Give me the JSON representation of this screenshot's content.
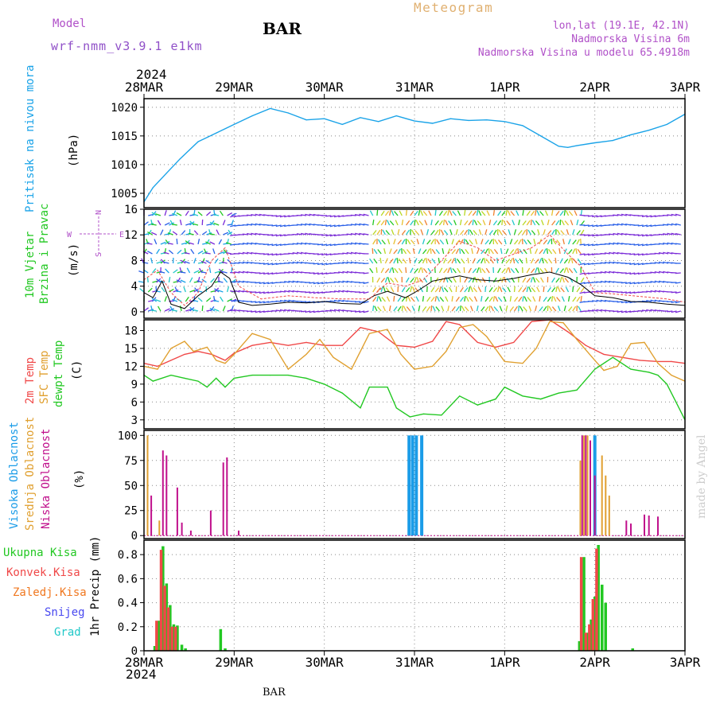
{
  "header": {
    "model_label": "Model",
    "model_name": "wrf-nmm_v3.9.1 e1km",
    "title": "BAR",
    "subtitle": "Meteogram",
    "coords": "lon,lat (19.1E, 42.1N)",
    "altitude": "Nadmorska Visina 6m",
    "model_altitude": "Nadmorska Visina u modelu 65.4918m",
    "footer": "BAR",
    "credit": "made by Angel",
    "year": "2024"
  },
  "colors": {
    "pressure": "#1aa3e8",
    "temp2m": "#f04848",
    "sfc": "#e0a030",
    "dewpt": "#22c822",
    "high_cloud": "#1a9ce8",
    "mid_cloud": "#e0a030",
    "low_cloud": "#c0108c",
    "total_rain": "#22c822",
    "conv_rain": "#f04848",
    "frz_rain": "#f07820",
    "snow": "#4848f0",
    "hail": "#20c8c8",
    "label_purple": "#b050c8"
  },
  "chart_data": [
    {
      "type": "line",
      "ylabel": "(hPa)",
      "side_label": "Pritisak na nivou mora",
      "x_ticks": [
        "28MAR",
        "29MAR",
        "30MAR",
        "31MAR",
        "1APR",
        "2APR",
        "3APR"
      ],
      "ylim": [
        1002.5,
        1021.5
      ],
      "y_ticks": [
        1005,
        1010,
        1015,
        1020
      ],
      "grid": true,
      "series": [
        {
          "key": "pressure",
          "x": [
            0,
            0.1,
            0.25,
            0.4,
            0.5,
            0.6,
            0.8,
            1.0,
            1.2,
            1.4,
            1.6,
            1.8,
            2.0,
            2.2,
            2.4,
            2.6,
            2.8,
            3.0,
            3.2,
            3.4,
            3.6,
            3.8,
            4.0,
            4.2,
            4.4,
            4.6,
            4.7,
            4.8,
            5.0,
            5.2,
            5.4,
            5.6,
            5.8,
            6.0
          ],
          "values": [
            1003.5,
            1006,
            1008.5,
            1011,
            1012.5,
            1014,
            1015.5,
            1017,
            1018.5,
            1019.8,
            1019,
            1017.8,
            1018,
            1017,
            1018.2,
            1017.5,
            1018.5,
            1017.6,
            1017.2,
            1018,
            1017.7,
            1017.8,
            1017.5,
            1016.8,
            1015,
            1013.2,
            1013,
            1013.3,
            1013.8,
            1014.2,
            1015.2,
            1016,
            1017,
            1018.8
          ]
        }
      ]
    },
    {
      "type": "line",
      "ylabel": "(m/s)",
      "side_label_1": "10m Vjetar",
      "side_label_2": "Brzina i Pravac",
      "compass": {
        "n": "N",
        "s": "S",
        "e": "E",
        "w": "W"
      },
      "ylim": [
        -1,
        16
      ],
      "y_ticks": [
        0,
        4,
        8,
        12,
        16
      ],
      "grid": true,
      "series": [
        {
          "key": "mean_wind",
          "x": [
            0,
            0.1,
            0.2,
            0.3,
            0.45,
            0.6,
            0.75,
            0.85,
            0.95,
            1.05,
            1.2,
            1.4,
            1.6,
            1.8,
            2.0,
            2.2,
            2.4,
            2.55,
            2.7,
            2.9,
            3.05,
            3.2,
            3.35,
            3.5,
            3.7,
            3.9,
            4.1,
            4.3,
            4.5,
            4.7,
            4.85,
            5.0,
            5.2,
            5.4,
            5.6,
            5.8,
            6.0
          ],
          "values": [
            3,
            2.2,
            4.8,
            1.2,
            0.5,
            2.5,
            4,
            6.2,
            5.2,
            1.5,
            1,
            1.2,
            1.5,
            1.4,
            1.6,
            1.3,
            1.2,
            2.5,
            3.2,
            2.2,
            3.4,
            4.8,
            5.2,
            5.6,
            5.0,
            4.8,
            5.2,
            5.8,
            6.2,
            5.4,
            4.2,
            2.5,
            2.2,
            1.6,
            1.5,
            1.2,
            1.0
          ]
        },
        {
          "key": "gust",
          "x": [
            0,
            0.15,
            0.3,
            0.45,
            0.6,
            0.75,
            0.9,
            1.05,
            1.3,
            1.6,
            1.9,
            2.2,
            2.5,
            2.7,
            2.9,
            3.1,
            3.3,
            3.5,
            3.7,
            3.9,
            4.1,
            4.3,
            4.5,
            4.7,
            4.85,
            5.0,
            5.2,
            5.5,
            5.8,
            6.0
          ],
          "values": [
            5,
            6.5,
            3,
            1,
            3,
            8,
            10,
            4,
            2,
            2.5,
            2.2,
            2,
            2,
            4.5,
            4,
            5,
            8,
            11,
            10,
            8,
            9,
            10,
            12,
            9,
            7,
            3,
            2.8,
            2.4,
            2,
            1.5
          ]
        }
      ]
    },
    {
      "type": "line",
      "ylabel": "(C)",
      "side_label_1": "2m Temp",
      "side_label_2": "SFC Temp",
      "side_label_3": "dewpt Temp",
      "ylim": [
        1.5,
        19.8
      ],
      "y_ticks": [
        3,
        6,
        9,
        12,
        15,
        18
      ],
      "grid": true,
      "series": [
        {
          "key": "temp2m",
          "x": [
            0,
            0.15,
            0.3,
            0.45,
            0.6,
            0.75,
            0.9,
            1.0,
            1.2,
            1.4,
            1.6,
            1.8,
            2.0,
            2.2,
            2.4,
            2.6,
            2.8,
            3.0,
            3.2,
            3.35,
            3.5,
            3.7,
            3.9,
            4.1,
            4.3,
            4.5,
            4.7,
            4.9,
            5.1,
            5.3,
            5.5,
            5.7,
            5.85,
            6.0
          ],
          "values": [
            12.5,
            12,
            13,
            14,
            14.5,
            14,
            13,
            14.2,
            15.5,
            16,
            15.5,
            16,
            15.5,
            15.5,
            18.5,
            17.8,
            15.5,
            15.2,
            16.2,
            19.5,
            19,
            16,
            15.2,
            16,
            19.5,
            19.8,
            17.8,
            15.5,
            14,
            13.5,
            13,
            12.8,
            12.8,
            12.5
          ]
        },
        {
          "key": "sfc",
          "x": [
            0,
            0.15,
            0.3,
            0.45,
            0.55,
            0.7,
            0.8,
            0.9,
            1.0,
            1.2,
            1.4,
            1.6,
            1.8,
            1.95,
            2.1,
            2.3,
            2.5,
            2.7,
            2.85,
            3.0,
            3.2,
            3.35,
            3.5,
            3.65,
            3.8,
            4.0,
            4.2,
            4.35,
            4.5,
            4.65,
            4.8,
            5.0,
            5.1,
            5.25,
            5.4,
            5.55,
            5.7,
            5.85,
            6.0
          ],
          "values": [
            12,
            11.5,
            15,
            16.2,
            14.5,
            15.2,
            13,
            12.5,
            14,
            17.5,
            16.5,
            11.5,
            14,
            16.5,
            13.5,
            11.5,
            17.5,
            18.2,
            14,
            11.5,
            12,
            14.5,
            18.5,
            19,
            17,
            12.8,
            12.5,
            15,
            19.5,
            19.3,
            16.5,
            13,
            11.3,
            12,
            15.8,
            16,
            12.5,
            10.5,
            9.5
          ]
        },
        {
          "key": "dewpt",
          "x": [
            0,
            0.1,
            0.3,
            0.45,
            0.6,
            0.7,
            0.8,
            0.9,
            1.0,
            1.2,
            1.4,
            1.6,
            1.8,
            2.0,
            2.2,
            2.4,
            2.5,
            2.7,
            2.8,
            2.95,
            3.1,
            3.3,
            3.5,
            3.7,
            3.9,
            4.0,
            4.2,
            4.4,
            4.6,
            4.8,
            5.0,
            5.2,
            5.4,
            5.6,
            5.7,
            5.8,
            5.9,
            6.0
          ],
          "values": [
            10.5,
            9.5,
            10.5,
            10,
            9.5,
            8.5,
            10,
            8.5,
            10,
            10.5,
            10.5,
            10.5,
            10,
            9,
            7.5,
            5,
            8.5,
            8.5,
            5,
            3.5,
            4,
            3.8,
            7,
            5.5,
            6.5,
            8.5,
            7,
            6.5,
            7.5,
            8,
            11.5,
            13.5,
            11.5,
            11,
            10.5,
            9,
            6,
            3
          ]
        }
      ]
    },
    {
      "type": "bar",
      "ylabel": "(%)",
      "side_label_1": "Visoka Oblacnost",
      "side_label_2": "Srednja Oblacnost",
      "side_label_3": "Niska Oblacnost",
      "ylim": [
        -3,
        105
      ],
      "y_ticks": [
        0,
        25,
        50,
        75,
        100
      ],
      "grid": true,
      "series": [
        {
          "key": "high_cloud",
          "x": [
            2.94,
            2.98,
            3.02,
            3.08,
            5.0
          ],
          "values": [
            100,
            100,
            100,
            100,
            100
          ]
        },
        {
          "key": "mid_cloud",
          "x": [
            0.04,
            0.17,
            4.84,
            4.88,
            4.92,
            5.08,
            5.12,
            5.16
          ],
          "values": [
            100,
            15,
            75,
            100,
            100,
            80,
            60,
            40
          ]
        },
        {
          "key": "low_cloud",
          "x": [
            0.08,
            0.21,
            0.25,
            0.37,
            0.42,
            0.52,
            0.74,
            0.88,
            0.92,
            1.05,
            4.86,
            4.9,
            4.95,
            5.0,
            5.35,
            5.4,
            5.55,
            5.6,
            5.7
          ],
          "values": [
            40,
            85,
            80,
            48,
            13,
            5,
            25,
            73,
            78,
            5,
            100,
            100,
            95,
            60,
            15,
            12,
            21,
            20,
            19
          ]
        }
      ]
    },
    {
      "type": "bar",
      "ylabel": "1hr Precip (mm)",
      "side_label_1": "Ukupna Kisa",
      "side_label_2": "Konvek.Kisa",
      "side_label_3": "Zaledj.Kisa",
      "side_label_4": "Snijeg",
      "side_label_5": "Grad",
      "ylim": [
        0,
        0.92
      ],
      "y_ticks": [
        0,
        0.2,
        0.4,
        0.6,
        0.8
      ],
      "grid": true,
      "x_ticks": [
        "28MAR",
        "29MAR",
        "30MAR",
        "31MAR",
        "1APR",
        "2APR",
        "3APR"
      ],
      "series": [
        {
          "key": "total_rain",
          "x": [
            0.12,
            0.17,
            0.21,
            0.25,
            0.29,
            0.33,
            0.37,
            0.42,
            0.46,
            0.85,
            0.9,
            4.83,
            4.88,
            4.92,
            4.96,
            5.0,
            5.04,
            5.08,
            5.12,
            5.42
          ],
          "values": [
            0.04,
            0.25,
            0.87,
            0.56,
            0.38,
            0.22,
            0.21,
            0.05,
            0.02,
            0.18,
            0.02,
            0.08,
            0.78,
            0.15,
            0.26,
            0.45,
            0.88,
            0.55,
            0.4,
            0.02
          ]
        },
        {
          "key": "conv_rain",
          "x": [
            0.14,
            0.19,
            0.23,
            0.27,
            0.31,
            0.35,
            4.85,
            4.9,
            4.94,
            4.98,
            5.02
          ],
          "values": [
            0.25,
            0.84,
            0.54,
            0.36,
            0.2,
            0.2,
            0.78,
            0.15,
            0.22,
            0.43,
            0.85
          ]
        }
      ]
    }
  ]
}
